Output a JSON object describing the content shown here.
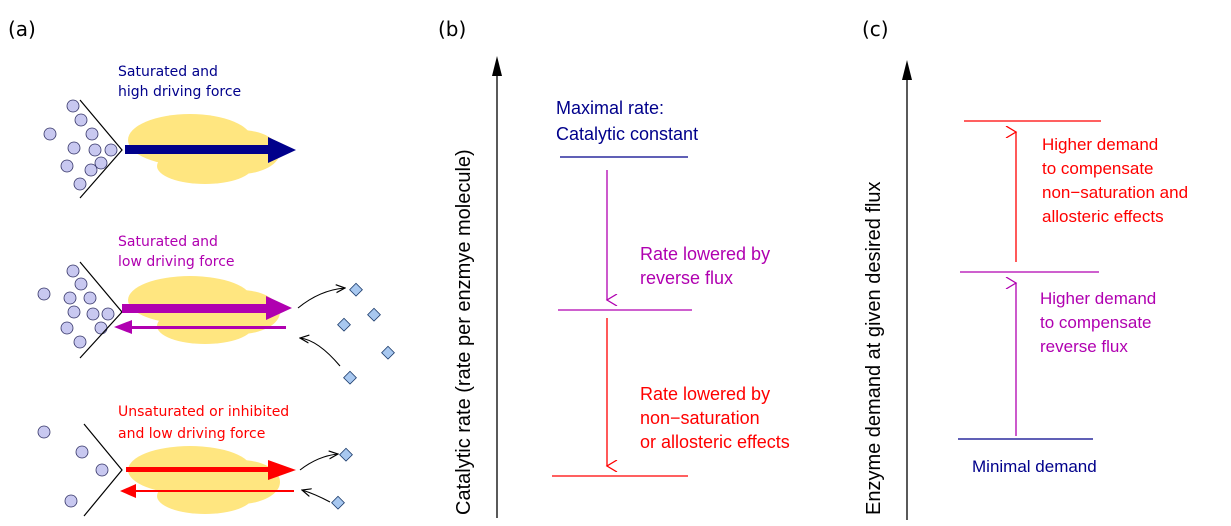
{
  "colors": {
    "blue": "#00008b",
    "magenta": "#b000b0",
    "red": "#ff0000",
    "enzyme": "#ffe680",
    "substrate_fill": "#c8c8f0",
    "product_fill": "#a8c8f0"
  },
  "panel_a": {
    "label": "(a)",
    "scenario1": {
      "line1": "Saturated and",
      "line2": "high driving force"
    },
    "scenario2": {
      "line1": "Saturated and",
      "line2": "low driving force"
    },
    "scenario3": {
      "line1": "Unsaturated or inhibited",
      "line2": "and low driving force"
    }
  },
  "panel_b": {
    "label": "(b)",
    "axis_label": "Catalytic rate (rate per enzmye molecule)",
    "max_line1": "Maximal rate:",
    "max_line2": "Catalytic constant",
    "reverse_line1": "Rate lowered by",
    "reverse_line2": "reverse flux",
    "nonsat_line1": "Rate lowered by",
    "nonsat_line2": "non−saturation",
    "nonsat_line3": "or allosteric effects"
  },
  "panel_c": {
    "label": "(c)",
    "axis_label": "Enzyme demand at given desired flux",
    "min_label": "Minimal demand",
    "reverse_line1": "Higher demand",
    "reverse_line2": "to compensate",
    "reverse_line3": "reverse flux",
    "nonsat_line1": "Higher demand",
    "nonsat_line2": "to compensate",
    "nonsat_line3": "non−saturation and",
    "nonsat_line4": "allosteric effects"
  }
}
